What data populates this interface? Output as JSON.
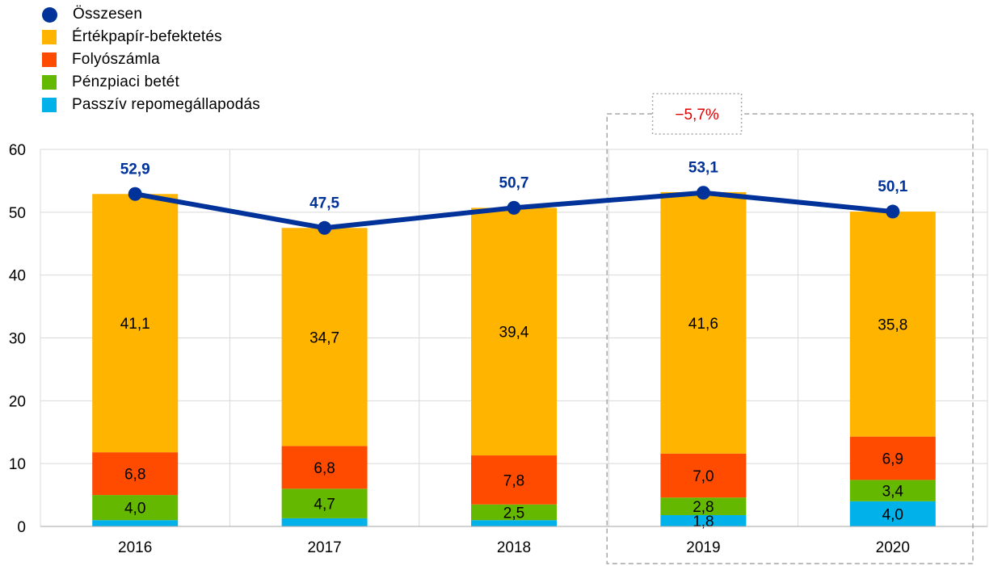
{
  "chart_data": {
    "type": "bar",
    "stacked": true,
    "categories": [
      "2016",
      "2017",
      "2018",
      "2019",
      "2020"
    ],
    "ylim": [
      0,
      60
    ],
    "yticks": [
      0,
      10,
      20,
      30,
      40,
      50,
      60
    ],
    "grid": true,
    "legend_position": "top-left",
    "series": [
      {
        "key": "repo",
        "name": "Passzív repomegállapodás",
        "color": "#00B1EA",
        "values": [
          1.0,
          1.3,
          1.0,
          1.8,
          4.0
        ],
        "labels": [
          "",
          "",
          "",
          "1,8",
          "4,0"
        ]
      },
      {
        "key": "mm",
        "name": "Pénzpiaci betét",
        "color": "#65B800",
        "values": [
          4.0,
          4.7,
          2.5,
          2.8,
          3.4
        ],
        "labels": [
          "4,0",
          "4,7",
          "2,5",
          "2,8",
          "3,4"
        ]
      },
      {
        "key": "current",
        "name": "Folyószámla",
        "color": "#FF4B00",
        "values": [
          6.8,
          6.8,
          7.8,
          7.0,
          6.9
        ],
        "labels": [
          "6,8",
          "6,8",
          "7,8",
          "7,0",
          "6,9"
        ]
      },
      {
        "key": "securities",
        "name": "Értékpapír-befektetés",
        "color": "#FFB400",
        "values": [
          41.1,
          34.7,
          39.4,
          41.6,
          35.8
        ],
        "labels": [
          "41,1",
          "34,7",
          "39,4",
          "41,6",
          "35,8"
        ]
      }
    ],
    "total": {
      "name": "Összesen",
      "color": "#003299",
      "values": [
        52.9,
        47.5,
        50.7,
        53.1,
        50.1
      ],
      "labels": [
        "52,9",
        "47,5",
        "50,7",
        "53,1",
        "50,1"
      ]
    },
    "annotation": {
      "text": "−5,7%",
      "color": "#E00000",
      "range": [
        "2019",
        "2020"
      ]
    }
  },
  "legend": [
    {
      "name": "Összesen",
      "color": "#003299",
      "shape": "circle"
    },
    {
      "name": "Értékpapír-befektetés",
      "color": "#FFB400",
      "shape": "square"
    },
    {
      "name": "Folyószámla",
      "color": "#FF4B00",
      "shape": "square"
    },
    {
      "name": "Pénzpiaci betét",
      "color": "#65B800",
      "shape": "square"
    },
    {
      "name": "Passzív repomegállapodás",
      "color": "#00B1EA",
      "shape": "square"
    }
  ]
}
